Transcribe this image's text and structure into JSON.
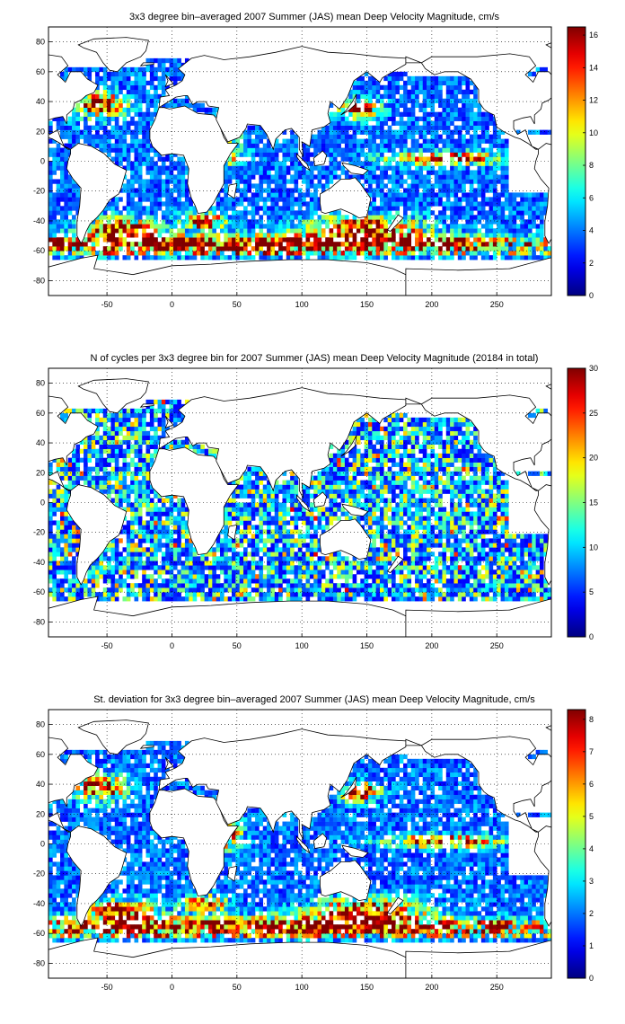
{
  "chart_data": [
    {
      "type": "heatmap",
      "title": "3x3 degree bin–averaged 2007 Summer (JAS) mean Deep Velocity Magnitude, cm/s",
      "x_ticks": [
        -50,
        0,
        50,
        100,
        150,
        200,
        250
      ],
      "y_ticks": [
        80,
        60,
        40,
        20,
        0,
        -20,
        -40,
        -60,
        -80
      ],
      "xlim": [
        -95,
        292
      ],
      "ylim": [
        -90,
        90
      ],
      "bin_size_deg": 3,
      "grid": true,
      "colormap": "jet",
      "colorbar_ticks": [
        16,
        14,
        12,
        10,
        8,
        6,
        4,
        2,
        0
      ],
      "clim": [
        0,
        16.5
      ],
      "typical_value": 3,
      "high_value_regions": [
        "Gulf Stream",
        "Antarctic Circumpolar Current",
        "Agulhas",
        "Kuroshio",
        "Equatorial Pacific"
      ]
    },
    {
      "type": "heatmap",
      "title": "N of cycles per 3x3 degree bin for 2007 Summer (JAS) mean Deep Velocity Magnitude (20184 in total)",
      "x_ticks": [
        -50,
        0,
        50,
        100,
        150,
        200,
        250
      ],
      "y_ticks": [
        80,
        60,
        40,
        20,
        0,
        -20,
        -40,
        -60,
        -80
      ],
      "xlim": [
        -95,
        292
      ],
      "ylim": [
        -90,
        90
      ],
      "bin_size_deg": 3,
      "grid": true,
      "colormap": "jet",
      "colorbar_ticks": [
        30,
        25,
        20,
        15,
        10,
        5,
        0
      ],
      "clim": [
        0,
        30
      ],
      "total_cycles": 20184,
      "typical_value": 5
    },
    {
      "type": "heatmap",
      "title": "St. deviation for 3x3 degree bin–averaged 2007 Summer (JAS) mean Deep Velocity Magnitude, cm/s",
      "x_ticks": [
        -50,
        0,
        50,
        100,
        150,
        200,
        250
      ],
      "y_ticks": [
        80,
        60,
        40,
        20,
        0,
        -20,
        -40,
        -60,
        -80
      ],
      "xlim": [
        -95,
        292
      ],
      "ylim": [
        -90,
        90
      ],
      "bin_size_deg": 3,
      "grid": true,
      "colormap": "jet",
      "colorbar_ticks": [
        8,
        7,
        6,
        5,
        4,
        3,
        2,
        1,
        0
      ],
      "clim": [
        0,
        8.3
      ],
      "typical_value": 1.2
    }
  ]
}
